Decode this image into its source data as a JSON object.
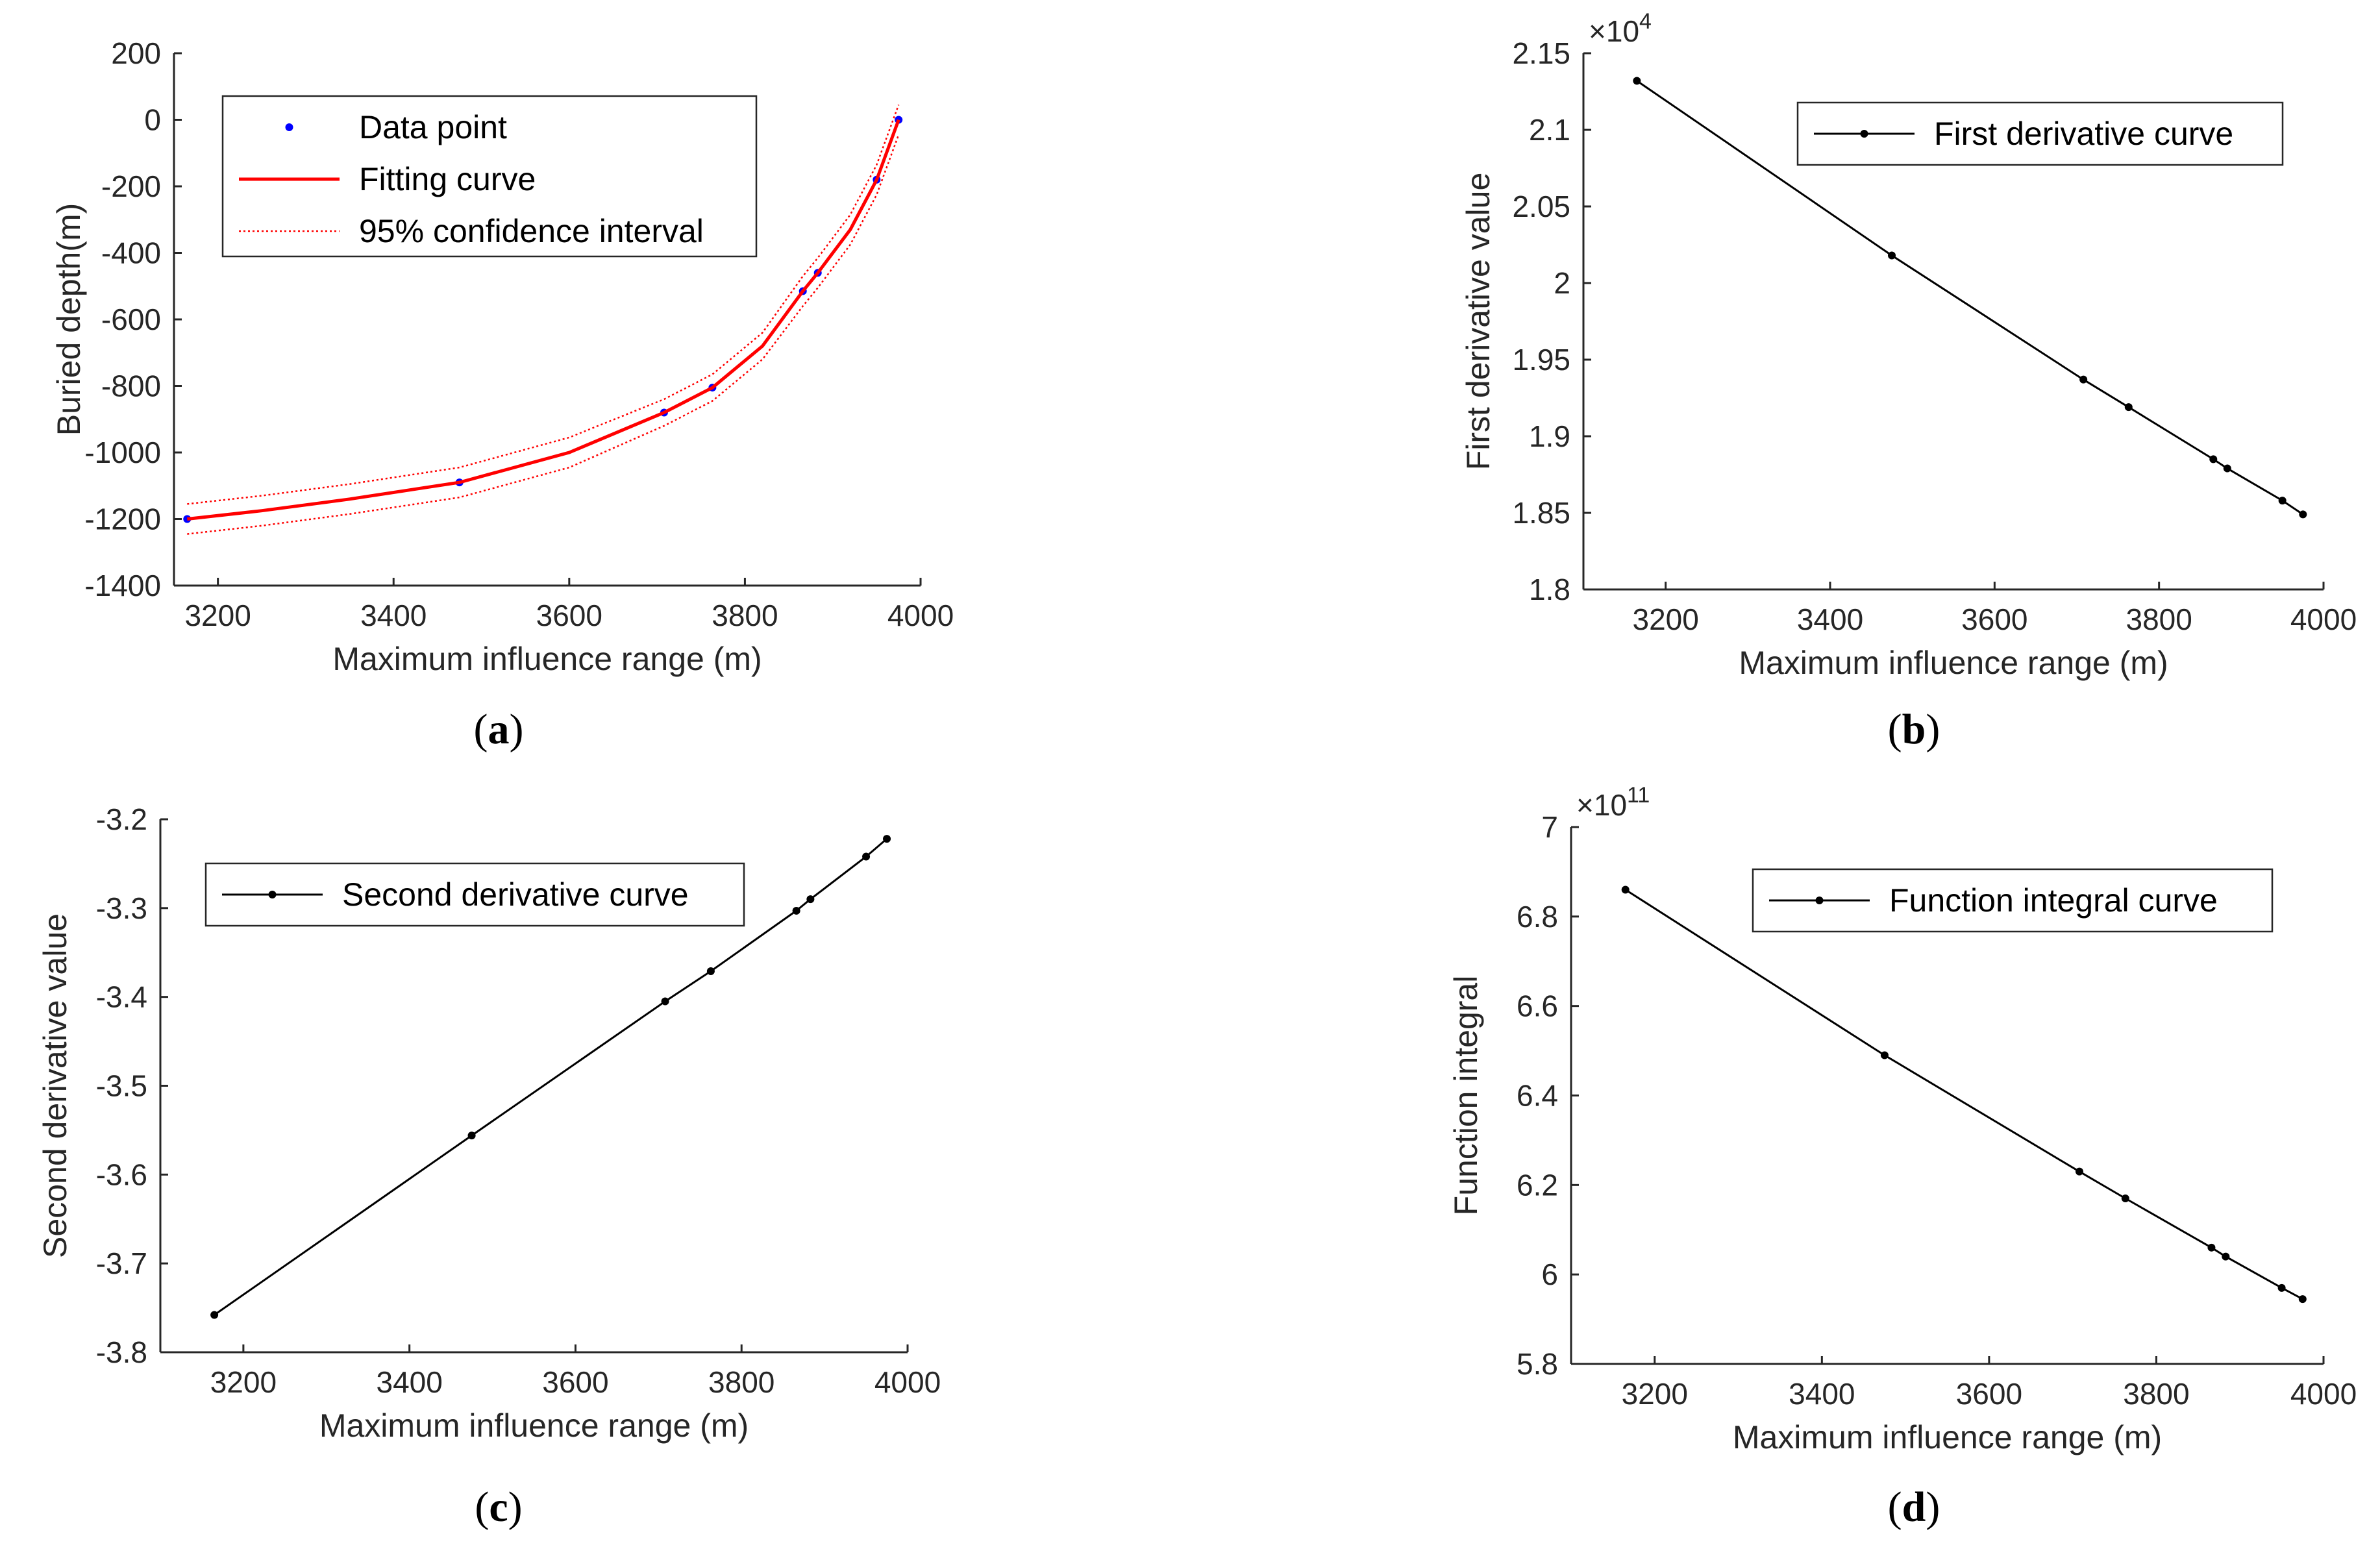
{
  "chart_data": [
    {
      "id": "a",
      "type": "scatter",
      "caption_letter": "a",
      "xlabel": "Maximum influence range (m)",
      "ylabel": "Buried depth(m)",
      "xlim": [
        3150,
        4000
      ],
      "ylim": [
        -1400,
        200
      ],
      "xticks": [
        3200,
        3400,
        3600,
        3800,
        4000
      ],
      "yticks": [
        200,
        0,
        -200,
        -400,
        -600,
        -800,
        -1000,
        -1200,
        -1400
      ],
      "exponent": "",
      "legend_position": "top-left",
      "legend": [
        "Data point",
        "Fitting curve",
        "95% confidence interval"
      ],
      "series": [
        {
          "name": "Data point",
          "kind": "points",
          "color": "#0000ff",
          "x": [
            3165,
            3475,
            3708,
            3763,
            3866,
            3883,
            3950,
            3975
          ],
          "y": [
            -1200,
            -1090,
            -880,
            -805,
            -515,
            -460,
            -180,
            0
          ]
        },
        {
          "name": "Fitting curve",
          "kind": "line",
          "color": "#ff0000",
          "x": [
            3165,
            3250,
            3350,
            3475,
            3600,
            3708,
            3763,
            3820,
            3866,
            3883,
            3920,
            3950,
            3975
          ],
          "y": [
            -1200,
            -1175,
            -1140,
            -1090,
            -1000,
            -880,
            -805,
            -680,
            -515,
            -460,
            -330,
            -180,
            0
          ]
        },
        {
          "name": "95% confidence interval upper",
          "kind": "dotted",
          "color": "#ff0000",
          "x": [
            3165,
            3250,
            3350,
            3475,
            3600,
            3708,
            3763,
            3820,
            3866,
            3883,
            3920,
            3950,
            3975
          ],
          "y": [
            -1155,
            -1130,
            -1095,
            -1045,
            -955,
            -840,
            -765,
            -640,
            -470,
            -415,
            -285,
            -135,
            45
          ]
        },
        {
          "name": "95% confidence interval lower",
          "kind": "dotted",
          "color": "#ff0000",
          "x": [
            3165,
            3250,
            3350,
            3475,
            3600,
            3708,
            3763,
            3820,
            3866,
            3883,
            3920,
            3950,
            3975
          ],
          "y": [
            -1245,
            -1220,
            -1185,
            -1135,
            -1045,
            -920,
            -845,
            -720,
            -560,
            -505,
            -375,
            -225,
            -45
          ]
        }
      ]
    },
    {
      "id": "b",
      "type": "line",
      "caption_letter": "b",
      "xlabel": "Maximum influence range (m)",
      "ylabel": "First derivative value",
      "xlim": [
        3100,
        4000
      ],
      "ylim": [
        1.8,
        2.15
      ],
      "xticks": [
        3200,
        3400,
        3600,
        3800,
        4000
      ],
      "yticks": [
        2.15,
        2.1,
        2.05,
        2,
        1.95,
        1.9,
        1.85,
        1.8
      ],
      "exponent": "4",
      "legend_position": "top-right",
      "legend": [
        "First derivative curve"
      ],
      "series": [
        {
          "name": "First derivative curve",
          "kind": "line-marker",
          "color": "#000000",
          "x": [
            3165,
            3475,
            3708,
            3763,
            3866,
            3883,
            3950,
            3975
          ],
          "y": [
            2.132,
            2.018,
            1.937,
            1.919,
            1.885,
            1.879,
            1.858,
            1.849
          ]
        }
      ]
    },
    {
      "id": "c",
      "type": "line",
      "caption_letter": "c",
      "xlabel": "Maximum influence range (m)",
      "ylabel": "Second derivative value",
      "xlim": [
        3100,
        4000
      ],
      "ylim": [
        -3.8,
        -3.2
      ],
      "xticks": [
        3200,
        3400,
        3600,
        3800,
        4000
      ],
      "yticks": [
        -3.2,
        -3.3,
        -3.4,
        -3.5,
        -3.6,
        -3.7,
        -3.8
      ],
      "exponent": "",
      "legend_position": "top-left",
      "legend": [
        "Second derivative curve"
      ],
      "series": [
        {
          "name": "Second derivative curve",
          "kind": "line-marker",
          "color": "#000000",
          "x": [
            3165,
            3475,
            3708,
            3763,
            3866,
            3883,
            3950,
            3975
          ],
          "y": [
            -3.758,
            -3.556,
            -3.405,
            -3.371,
            -3.303,
            -3.29,
            -3.242,
            -3.222
          ]
        }
      ]
    },
    {
      "id": "d",
      "type": "line",
      "caption_letter": "d",
      "xlabel": "Maximum influence range (m)",
      "ylabel": "Function integral",
      "xlim": [
        3100,
        4000
      ],
      "ylim": [
        5.8,
        7
      ],
      "xticks": [
        3200,
        3400,
        3600,
        3800,
        4000
      ],
      "yticks": [
        7,
        6.8,
        6.6,
        6.4,
        6.2,
        6,
        5.8
      ],
      "exponent": "11",
      "legend_position": "top-right",
      "legend": [
        "Function integral curve"
      ],
      "series": [
        {
          "name": "Function integral curve",
          "kind": "line-marker",
          "color": "#000000",
          "x": [
            3165,
            3475,
            3708,
            3763,
            3866,
            3883,
            3950,
            3975
          ],
          "y": [
            6.86,
            6.49,
            6.23,
            6.17,
            6.06,
            6.04,
            5.97,
            5.945
          ]
        }
      ]
    }
  ]
}
